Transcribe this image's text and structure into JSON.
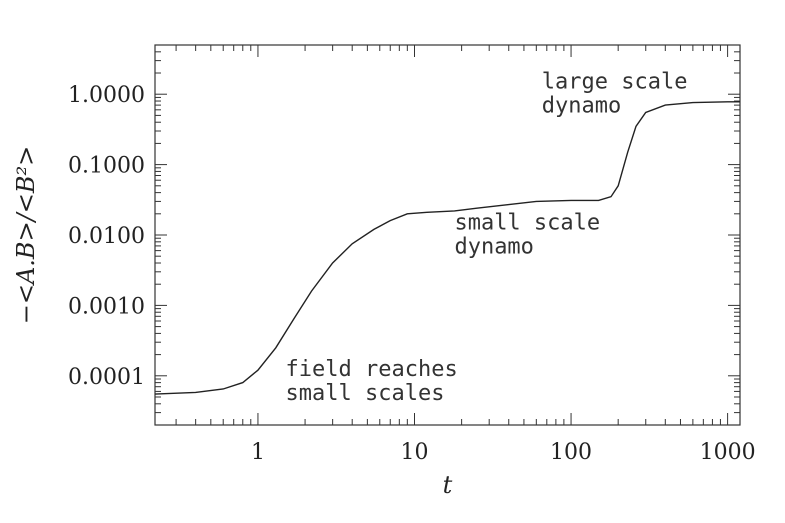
{
  "chart_data": {
    "type": "line",
    "title": "",
    "xlabel": "t",
    "ylabel": "−<A.B>/<B²>",
    "x_scale": "log",
    "y_scale": "log",
    "xlim": [
      0.22,
      1200
    ],
    "ylim": [
      2e-05,
      5
    ],
    "x_ticks": [
      1,
      10,
      100,
      1000
    ],
    "x_tick_labels": [
      "1",
      "10",
      "100",
      "1000"
    ],
    "y_ticks": [
      0.0001,
      0.001,
      0.01,
      0.1,
      1
    ],
    "y_tick_labels": [
      "0.0001",
      "0.0010",
      "0.0100",
      "0.1000",
      "1.0000"
    ],
    "grid": false,
    "series": [
      {
        "x": [
          0.22,
          0.4,
          0.6,
          0.8,
          1.0,
          1.3,
          1.7,
          2.2,
          3.0,
          4.0,
          5.5,
          7.0,
          9.0,
          12,
          18,
          25,
          40,
          60,
          100,
          150,
          180,
          200,
          230,
          260,
          300,
          400,
          600,
          1000,
          1200
        ],
        "y": [
          5.5e-05,
          5.8e-05,
          6.5e-05,
          8e-05,
          0.00012,
          0.00025,
          0.00065,
          0.0016,
          0.004,
          0.0075,
          0.012,
          0.016,
          0.02,
          0.021,
          0.022,
          0.024,
          0.027,
          0.03,
          0.031,
          0.031,
          0.035,
          0.05,
          0.15,
          0.35,
          0.55,
          0.7,
          0.76,
          0.78,
          0.78
        ]
      }
    ],
    "annotations": [
      {
        "lines": [
          "field reaches",
          "small scales"
        ],
        "x": 1.5,
        "y": 0.0001
      },
      {
        "lines": [
          "small scale",
          "dynamo"
        ],
        "x": 18,
        "y": 0.012
      },
      {
        "lines": [
          "large scale",
          "dynamo"
        ],
        "x": 65,
        "y": 1.2
      }
    ]
  }
}
